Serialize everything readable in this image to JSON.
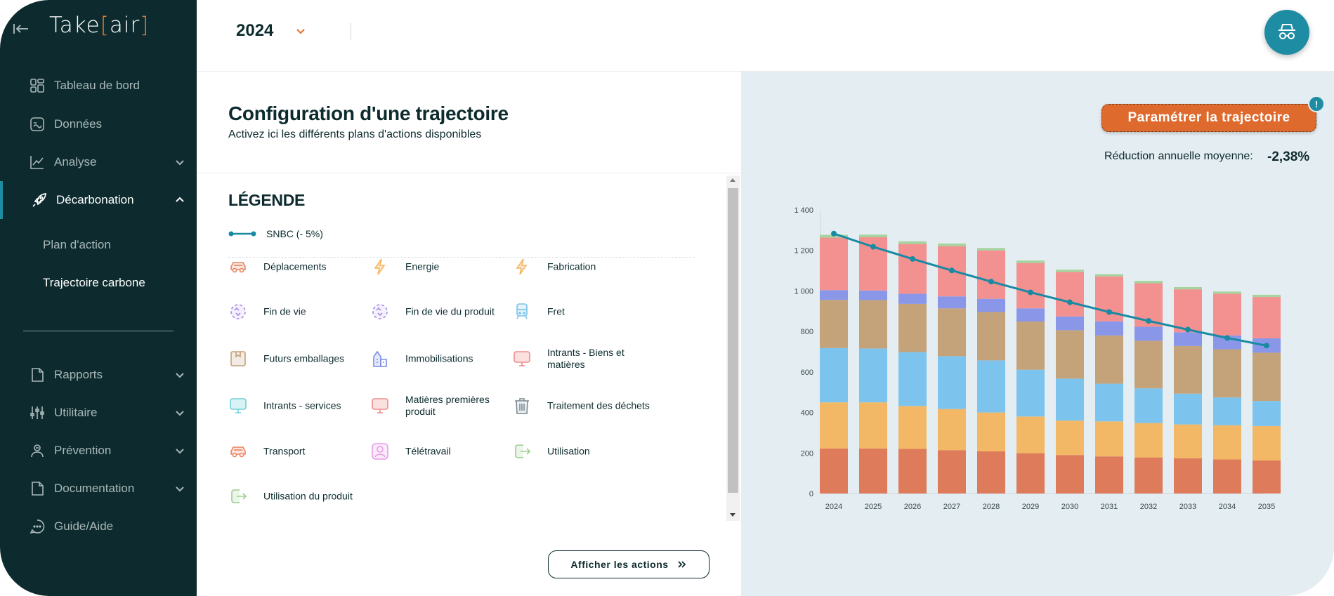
{
  "app": {
    "logo_left": "Take",
    "logo_open": "[",
    "logo_mid": "air",
    "logo_close": "]"
  },
  "sidebar": {
    "items": [
      {
        "label": "Tableau de bord"
      },
      {
        "label": "Données"
      },
      {
        "label": "Analyse"
      },
      {
        "label": "Décarbonation"
      },
      {
        "label": "Rapports"
      },
      {
        "label": "Utilitaire"
      },
      {
        "label": "Prévention"
      },
      {
        "label": "Documentation"
      },
      {
        "label": "Guide/Aide"
      }
    ],
    "sub_items": [
      {
        "label": "Plan d'action"
      },
      {
        "label": "Trajectoire carbone"
      }
    ]
  },
  "topbar": {
    "year": "2024"
  },
  "config": {
    "title": "Configuration d'une trajectoire",
    "subtitle": "Activez ici les différents plans d'actions disponibles"
  },
  "legend": {
    "title": "LÉGENDE",
    "snbc_label": "SNBC (- 5%)",
    "items": [
      {
        "label": "Déplacements",
        "icon": "car-icon",
        "color": "#e8835f"
      },
      {
        "label": "Energie",
        "icon": "lightning-icon",
        "color": "#f2b45f"
      },
      {
        "label": "Fabrication",
        "icon": "lightning-icon",
        "color": "#f2b45f"
      },
      {
        "label": "Fin de vie",
        "icon": "recycle-icon",
        "color": "#a98de8"
      },
      {
        "label": "Fin de vie du produit",
        "icon": "recycle-icon",
        "color": "#a98de8"
      },
      {
        "label": "Fret",
        "icon": "train-icon",
        "color": "#7ac2ea"
      },
      {
        "label": "Futurs emballages",
        "icon": "box-icon",
        "color": "#c4a27a"
      },
      {
        "label": "Immobilisations",
        "icon": "building-icon",
        "color": "#7a8de8"
      },
      {
        "label": "Intrants - Biens et matières",
        "icon": "monitor-icon",
        "color": "#ef8c8c"
      },
      {
        "label": "Intrants - services",
        "icon": "monitor-icon",
        "color": "#6fd0d8"
      },
      {
        "label": "Matières premières produit",
        "icon": "monitor-icon",
        "color": "#ef8c8c"
      },
      {
        "label": "Traitement des déchets",
        "icon": "trash-icon",
        "color": "#7a8a94"
      },
      {
        "label": "Transport",
        "icon": "car-icon",
        "color": "#e8835f"
      },
      {
        "label": "Télétravail",
        "icon": "person-icon",
        "color": "#e89ce8"
      },
      {
        "label": "Utilisation",
        "icon": "exit-icon",
        "color": "#9ccf8f"
      },
      {
        "label": "Utilisation du produit",
        "icon": "exit-icon",
        "color": "#9ccf8f"
      }
    ],
    "show_actions_label": "Afficher les actions"
  },
  "panel": {
    "param_button": "Paramétrer la trajectoire",
    "badge": "!",
    "reduction_label": "Réduction annuelle moyenne:",
    "reduction_value": "-2,38%"
  },
  "chart_data": {
    "type": "bar",
    "stacked": true,
    "categories": [
      "2024",
      "2025",
      "2026",
      "2027",
      "2028",
      "2029",
      "2030",
      "2031",
      "2032",
      "2033",
      "2034",
      "2035"
    ],
    "y_ticks": [
      "0",
      "200",
      "400",
      "600",
      "800",
      "1 000",
      "1 200",
      "1 400"
    ],
    "ylim": [
      0,
      1400
    ],
    "series": [
      {
        "color": "#de7b5b",
        "values": [
          222,
          222,
          220,
          214,
          208,
          199,
          190,
          183,
          178,
          174,
          168,
          163
        ]
      },
      {
        "color": "#f2b866",
        "values": [
          228,
          228,
          212,
          203,
          192,
          181,
          170,
          173,
          170,
          167,
          169,
          170
        ]
      },
      {
        "color": "#7cc4ee",
        "values": [
          268,
          266,
          266,
          261,
          257,
          231,
          207,
          186,
          171,
          152,
          137,
          124
        ]
      },
      {
        "color": "#c4a27a",
        "values": [
          238,
          239,
          238,
          236,
          239,
          238,
          239,
          238,
          235,
          235,
          238,
          238
        ]
      },
      {
        "color": "#8a97e8",
        "values": [
          48,
          47,
          50,
          59,
          65,
          65,
          68,
          70,
          69,
          68,
          68,
          71
        ]
      },
      {
        "color": "#f39090",
        "values": [
          259,
          263,
          246,
          248,
          239,
          224,
          220,
          222,
          215,
          212,
          206,
          204
        ]
      },
      {
        "color": "#a6d49e",
        "values": [
          14,
          13,
          13,
          13,
          12,
          12,
          11,
          11,
          12,
          11,
          11,
          11
        ]
      }
    ],
    "line": {
      "color": "#1a8aa3",
      "values": [
        1283,
        1218,
        1158,
        1101,
        1046,
        993,
        944,
        896,
        852,
        809,
        768,
        730
      ]
    }
  }
}
